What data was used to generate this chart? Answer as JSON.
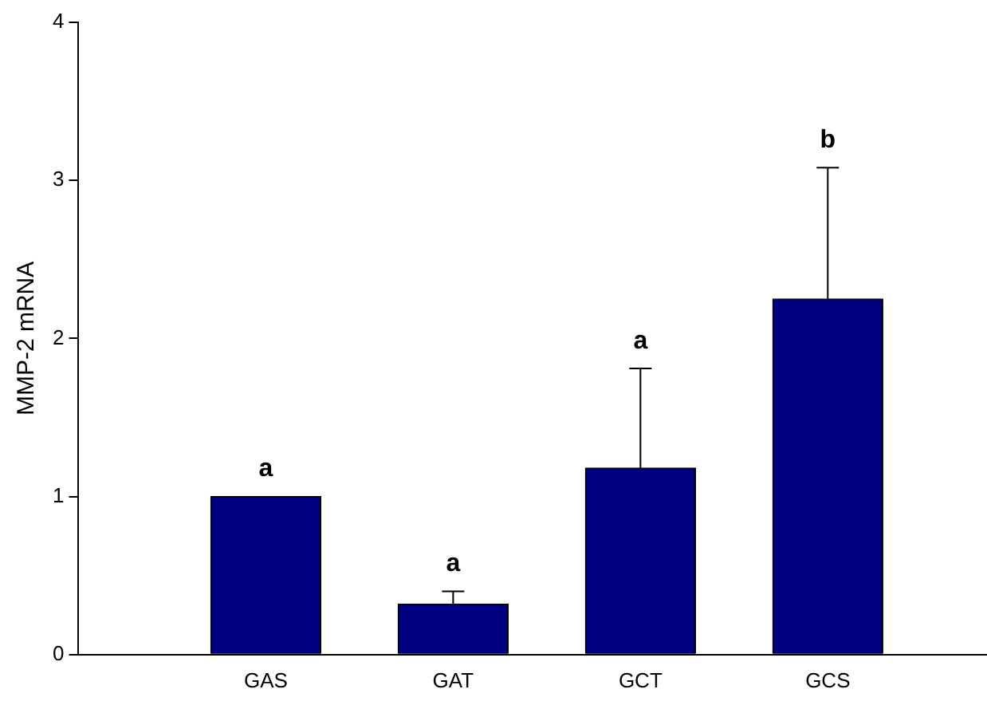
{
  "chart_data": {
    "type": "bar",
    "ylabel": "MMP-2 mRNA",
    "categories": [
      "GAS",
      "GAT",
      "GCT",
      "GCS"
    ],
    "values": [
      1.0,
      0.32,
      1.18,
      2.25
    ],
    "color": "#000080",
    "errors": [
      null,
      [
        0.32,
        0.4
      ],
      [
        1.18,
        1.81
      ],
      [
        2.25,
        3.08
      ]
    ],
    "ylim": [
      0,
      4
    ],
    "yticks": [
      0,
      1,
      2,
      3,
      4
    ],
    "grid": false,
    "legend": false,
    "annotations": [
      "a",
      "a",
      "a",
      "b"
    ]
  }
}
